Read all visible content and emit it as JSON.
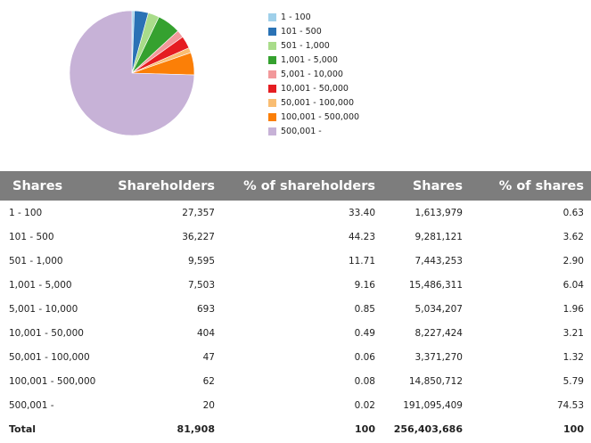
{
  "chart_data": {
    "type": "pie",
    "series": [
      {
        "label": "1 - 100",
        "value": 0.63,
        "color": "#9fd0ea"
      },
      {
        "label": "101 - 500",
        "value": 3.62,
        "color": "#2a72b5"
      },
      {
        "label": "501 - 1,000",
        "value": 2.9,
        "color": "#a9dc8a"
      },
      {
        "label": "1,001 - 5,000",
        "value": 6.04,
        "color": "#35a12f"
      },
      {
        "label": "5,001 - 10,000",
        "value": 1.96,
        "color": "#f2999b"
      },
      {
        "label": "10,001 - 50,000",
        "value": 3.21,
        "color": "#e51d21"
      },
      {
        "label": "50,001 - 100,000",
        "value": 1.32,
        "color": "#f9bd72"
      },
      {
        "label": "100,001 - 500,000",
        "value": 5.79,
        "color": "#fb7f07"
      },
      {
        "label": "500,001 -",
        "value": 74.53,
        "color": "#c7b2d7"
      }
    ]
  },
  "table": {
    "headers": [
      "Shares",
      "Shareholders",
      "% of shareholders",
      "Shares",
      "% of shares"
    ],
    "rows": [
      [
        "1 - 100",
        "27,357",
        "33.40",
        "1,613,979",
        "0.63"
      ],
      [
        "101 - 500",
        "36,227",
        "44.23",
        "9,281,121",
        "3.62"
      ],
      [
        "501 - 1,000",
        "9,595",
        "11.71",
        "7,443,253",
        "2.90"
      ],
      [
        "1,001 - 5,000",
        "7,503",
        "9.16",
        "15,486,311",
        "6.04"
      ],
      [
        "5,001 - 10,000",
        "693",
        "0.85",
        "5,034,207",
        "1.96"
      ],
      [
        "10,001 - 50,000",
        "404",
        "0.49",
        "8,227,424",
        "3.21"
      ],
      [
        "50,001 - 100,000",
        "47",
        "0.06",
        "3,371,270",
        "1.32"
      ],
      [
        "100,001 - 500,000",
        "62",
        "0.08",
        "14,850,712",
        "5.79"
      ],
      [
        "500,001 -",
        "20",
        "0.02",
        "191,095,409",
        "74.53"
      ]
    ],
    "total": [
      "Total",
      "81,908",
      "100",
      "256,403,686",
      "100"
    ]
  }
}
